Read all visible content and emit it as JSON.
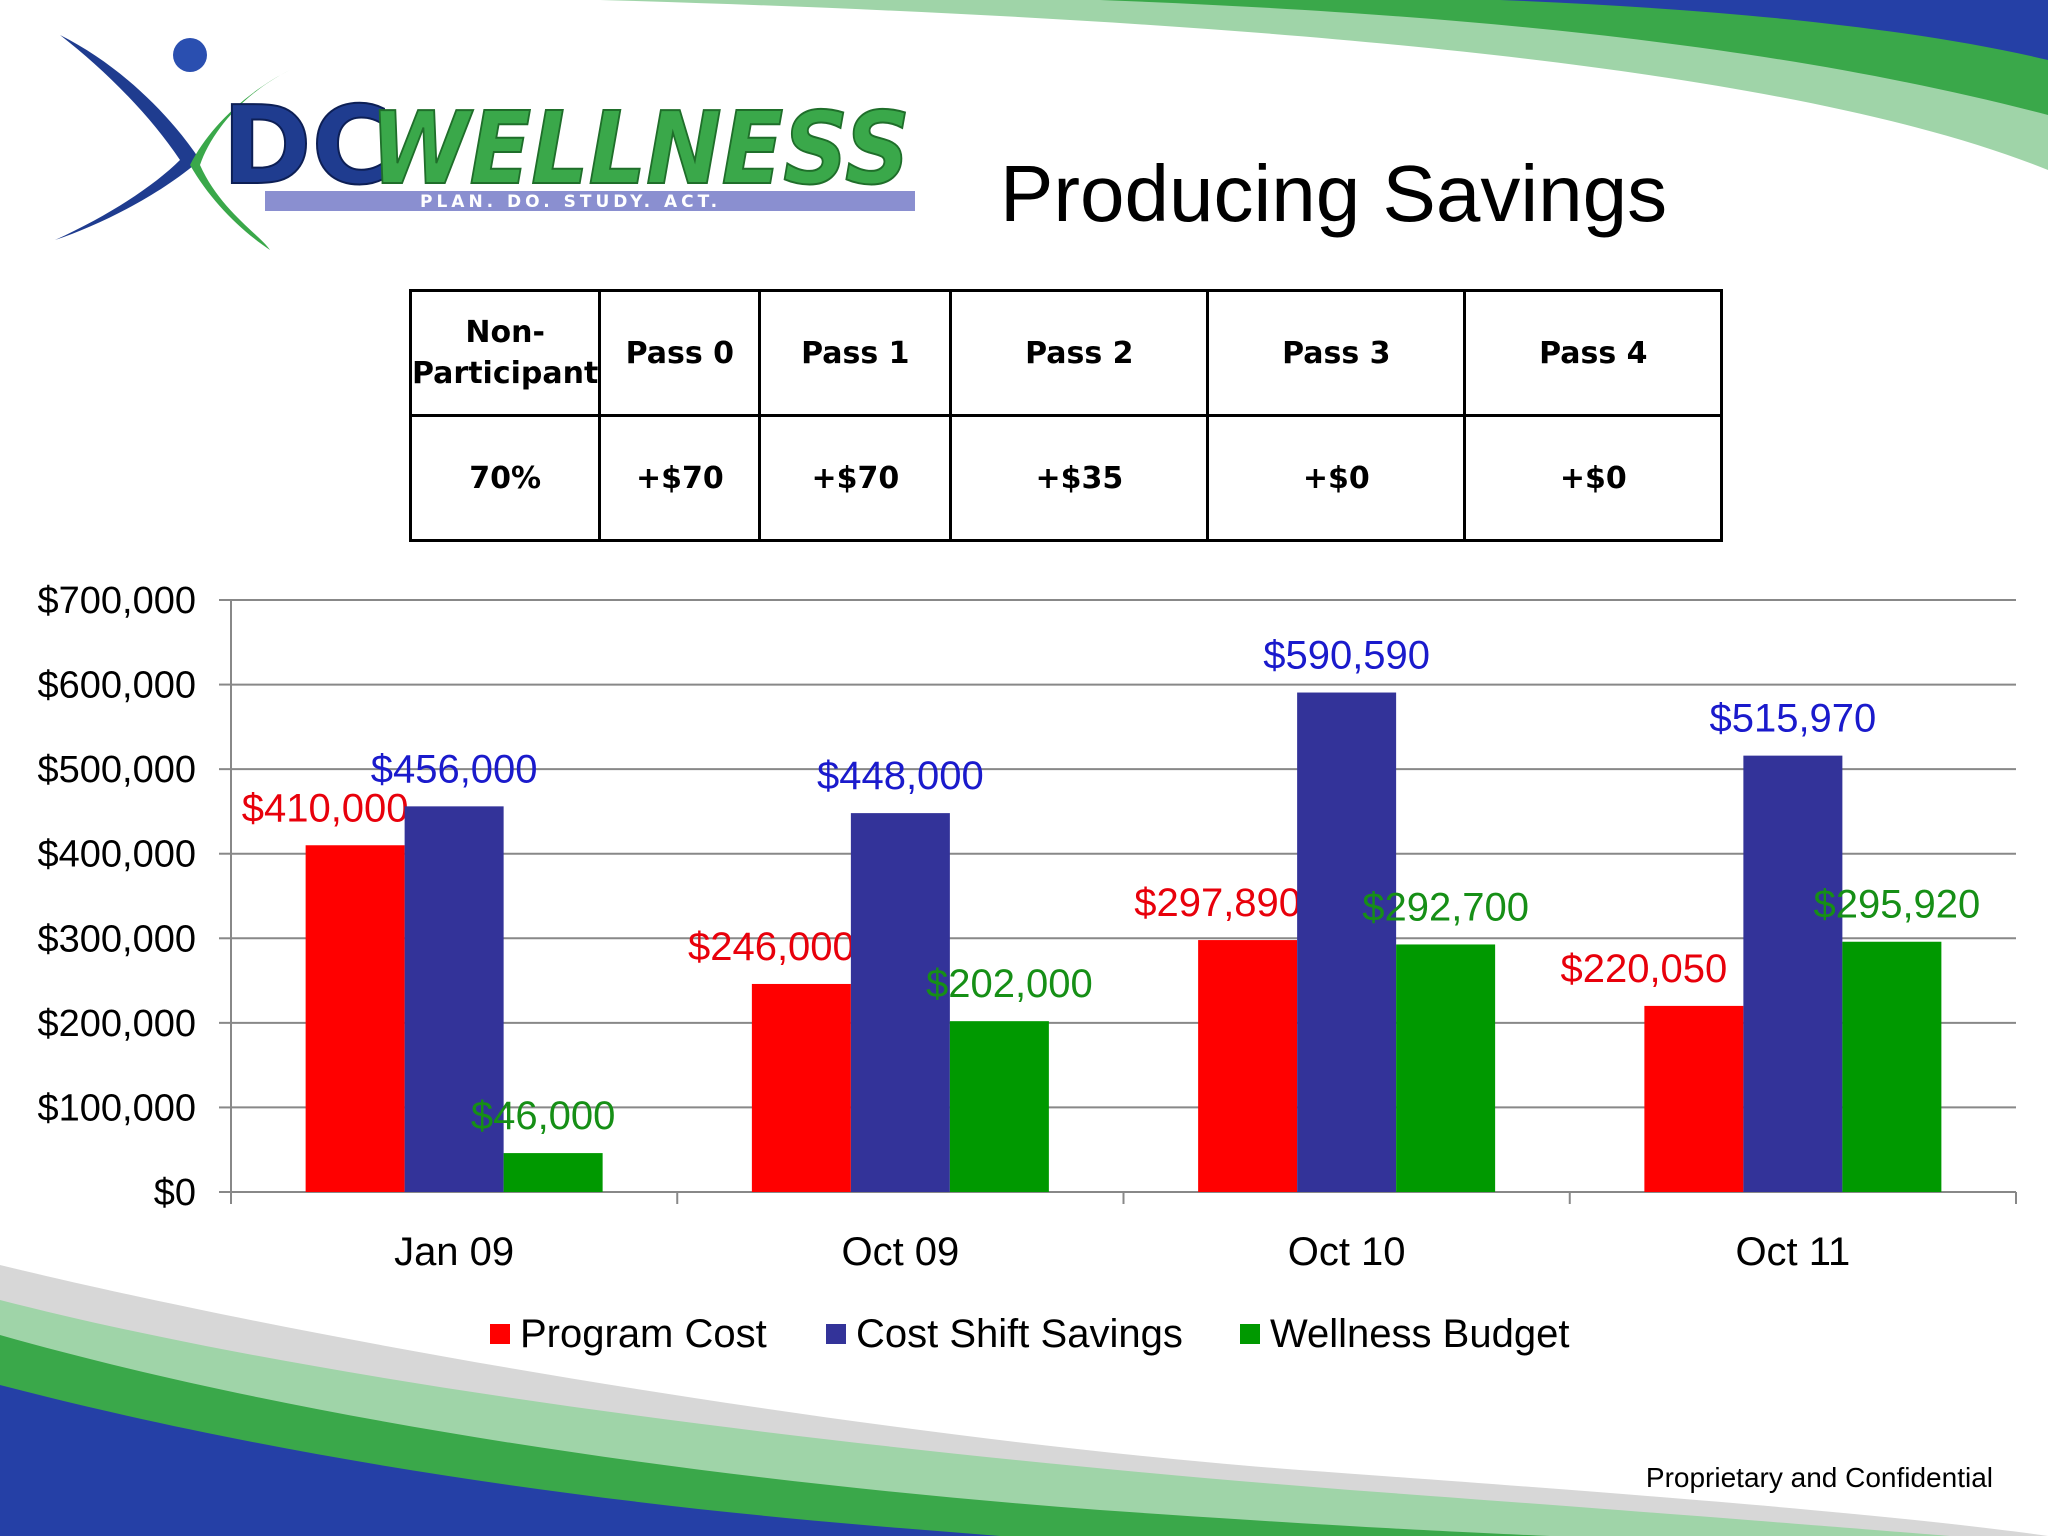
{
  "slide": {
    "title": "Producing Savings",
    "footer": "Proprietary and Confidential"
  },
  "logo": {
    "brand_dc": "DC",
    "brand_wellness": "WELLNESS",
    "tagline": "PLAN. DO. STUDY. ACT.",
    "colors": {
      "dc": "#1f3c8f",
      "wellness": "#3aa84a",
      "swoosh_blue": "#2540a6",
      "swoosh_green": "#48b04a"
    }
  },
  "table": {
    "headers": [
      "Non-Participant",
      "Pass 0",
      "Pass 1",
      "Pass 2",
      "Pass 3",
      "Pass 4"
    ],
    "header_lines": [
      [
        "Non-",
        "Participant"
      ],
      [
        "Pass 0"
      ],
      [
        "Pass 1"
      ],
      [
        "Pass 2"
      ],
      [
        "Pass 3"
      ],
      [
        "Pass 4"
      ]
    ],
    "values": [
      "70%",
      "+$70",
      "+$70",
      "+$35",
      "+$0",
      "+$0"
    ]
  },
  "chart_data": {
    "type": "bar",
    "categories": [
      "Jan 09",
      "Oct 09",
      "Oct 10",
      "Oct 11"
    ],
    "series": [
      {
        "name": "Program Cost",
        "color": "#ff0000",
        "label_color": "#e8000b",
        "values": [
          410000,
          246000,
          297890,
          220050
        ],
        "labels": [
          "$410,000",
          "$246,000",
          "$297,890",
          "$220,050"
        ]
      },
      {
        "name": "Cost Shift Savings",
        "color": "#333399",
        "label_color": "#1a1acc",
        "values": [
          456000,
          448000,
          590590,
          515970
        ],
        "labels": [
          "$456,000",
          "$448,000",
          "$590,590",
          "$515,970"
        ]
      },
      {
        "name": "Wellness Budget",
        "color": "#009900",
        "label_color": "#168f16",
        "values": [
          46000,
          202000,
          292700,
          295920
        ],
        "labels": [
          "$46,000",
          "$202,000",
          "$292,700",
          "$295,920"
        ]
      }
    ],
    "ylim": [
      0,
      700000
    ],
    "yticks": [
      0,
      100000,
      200000,
      300000,
      400000,
      500000,
      600000,
      700000
    ],
    "ytick_labels": [
      "$0",
      "$100,000",
      "$200,000",
      "$300,000",
      "$400,000",
      "$500,000",
      "$600,000",
      "$700,000"
    ],
    "grid": true,
    "legend": "bottom",
    "title": "",
    "xlabel": "",
    "ylabel": ""
  }
}
